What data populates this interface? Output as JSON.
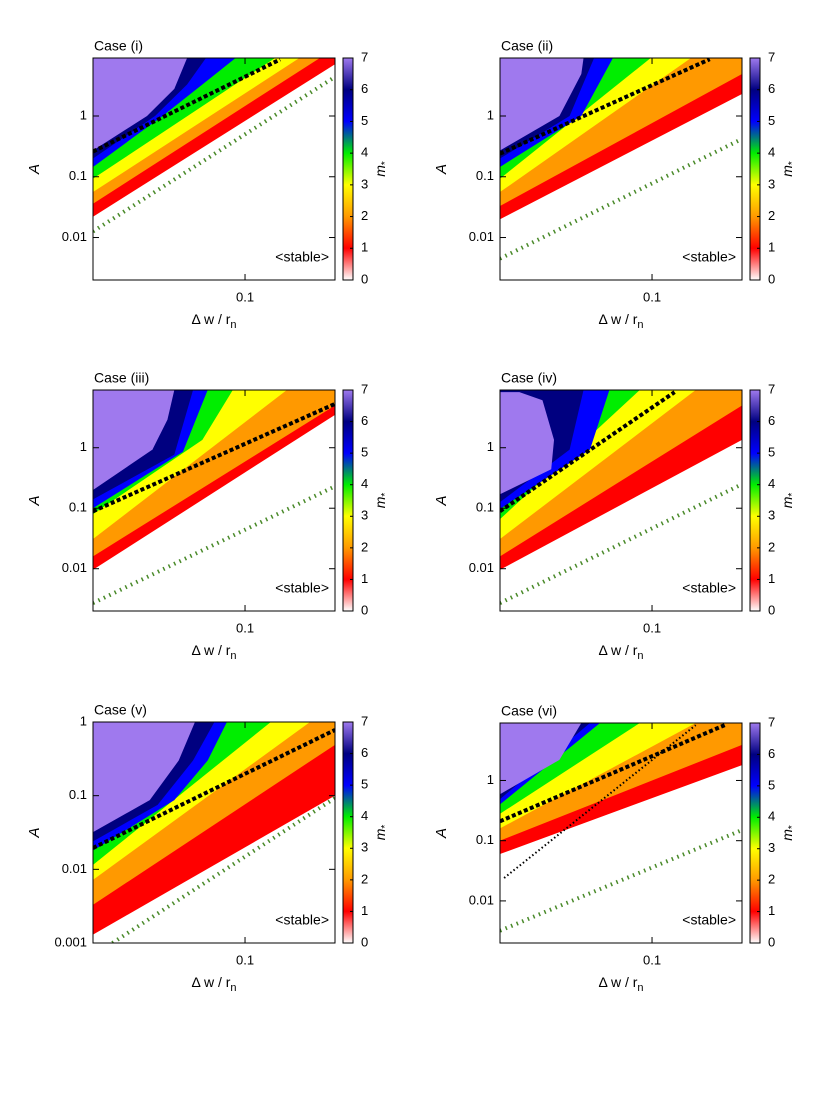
{
  "chart_data": [
    {
      "type": "heatmap",
      "title": "Case (i)",
      "xlabel": "Δ w / r",
      "xlabel_sub": "n",
      "ylabel": "A",
      "log_x": true,
      "log_y": true,
      "xlim": [
        0.031,
        0.2
      ],
      "ylim": [
        0.002,
        9
      ],
      "xticks": [
        0.1
      ],
      "yticks": [
        0.01,
        0.1,
        1
      ],
      "zlabel": "m",
      "zlabel_sub": "*",
      "zlim": [
        0,
        7
      ],
      "zticks": [
        0,
        1,
        2,
        3,
        4,
        5,
        6,
        7
      ],
      "colors": [
        "#ffffff",
        "#ff0000",
        "#ff9900",
        "#ffff00",
        "#00ee00",
        "#0000ff",
        "#000080",
        "#9f79ee"
      ],
      "annotation": "<stable>",
      "contours": [
        {
          "level": 1,
          "x": [
            0.031,
            0.2
          ],
          "y": [
            0.022,
            7.1
          ]
        },
        {
          "level": 2,
          "x": [
            0.031,
            0.178
          ],
          "y": [
            0.036,
            9
          ]
        },
        {
          "level": 3,
          "x": [
            0.031,
            0.152
          ],
          "y": [
            0.056,
            9
          ]
        },
        {
          "level": 4,
          "x": [
            0.031,
            0.126
          ],
          "y": [
            0.093,
            9
          ]
        },
        {
          "level": 5,
          "x": [
            0.031,
            0.053,
            0.072,
            0.093
          ],
          "y": [
            0.145,
            1,
            3.3,
            9
          ]
        },
        {
          "level": 6,
          "x": [
            0.031,
            0.05,
            0.064,
            0.074
          ],
          "y": [
            0.2,
            1,
            3.3,
            9
          ]
        },
        {
          "level": 7,
          "x": [
            0.031,
            0.047,
            0.058,
            0.064
          ],
          "y": [
            0.27,
            1,
            2.8,
            9
          ]
        }
      ],
      "lines": [
        {
          "marker": "triangle",
          "color": "#000000",
          "x": [
            0.031,
            0.131
          ],
          "y": [
            0.26,
            8.5
          ]
        },
        {
          "marker": "cross",
          "color": "#4a8a2a",
          "x": [
            0.031,
            0.2
          ],
          "y": [
            0.0126,
            4.4
          ]
        }
      ]
    },
    {
      "type": "heatmap",
      "title": "Case (ii)",
      "xlabel": "Δ w / r",
      "xlabel_sub": "n",
      "ylabel": "A",
      "log_x": true,
      "log_y": true,
      "xlim": [
        0.031,
        0.2
      ],
      "ylim": [
        0.002,
        9
      ],
      "xticks": [
        0.1
      ],
      "yticks": [
        0.01,
        0.1,
        1
      ],
      "zlabel": "m",
      "zlabel_sub": "*",
      "zlim": [
        0,
        7
      ],
      "zticks": [
        0,
        1,
        2,
        3,
        4,
        5,
        6,
        7
      ],
      "colors": [
        "#ffffff",
        "#ff0000",
        "#ff9900",
        "#ffff00",
        "#00ee00",
        "#0000ff",
        "#000080",
        "#9f79ee"
      ],
      "annotation": "<stable>",
      "contours": [
        {
          "level": 1,
          "x": [
            0.031,
            0.2
          ],
          "y": [
            0.02,
            2.3
          ]
        },
        {
          "level": 2,
          "x": [
            0.031,
            0.2
          ],
          "y": [
            0.033,
            4.9
          ]
        },
        {
          "level": 3,
          "x": [
            0.031,
            0.135
          ],
          "y": [
            0.056,
            9
          ]
        },
        {
          "level": 4,
          "x": [
            0.031,
            0.099
          ],
          "y": [
            0.093,
            9
          ]
        },
        {
          "level": 5,
          "x": [
            0.031,
            0.058,
            0.074
          ],
          "y": [
            0.145,
            1,
            9
          ]
        },
        {
          "level": 6,
          "x": [
            0.031,
            0.053,
            0.064
          ],
          "y": [
            0.2,
            1,
            9
          ]
        },
        {
          "level": 7,
          "x": [
            0.031,
            0.049,
            0.058,
            0.059
          ],
          "y": [
            0.27,
            1,
            4.9,
            9
          ]
        }
      ],
      "lines": [
        {
          "marker": "triangle",
          "color": "#000000",
          "x": [
            0.031,
            0.156
          ],
          "y": [
            0.24,
            8.6
          ]
        },
        {
          "marker": "cross",
          "color": "#4a8a2a",
          "x": [
            0.031,
            0.2
          ],
          "y": [
            0.0045,
            0.42
          ]
        }
      ]
    },
    {
      "type": "heatmap",
      "title": "Case (iii)",
      "xlabel": "Δ w / r",
      "xlabel_sub": "n",
      "ylabel": "A",
      "log_x": true,
      "log_y": true,
      "xlim": [
        0.031,
        0.2
      ],
      "ylim": [
        0.002,
        9
      ],
      "xticks": [
        0.1
      ],
      "yticks": [
        0.01,
        0.1,
        1
      ],
      "zlabel": "m",
      "zlabel_sub": "*",
      "zlim": [
        0,
        7
      ],
      "zticks": [
        0,
        1,
        2,
        3,
        4,
        5,
        6,
        7
      ],
      "colors": [
        "#ffffff",
        "#ff0000",
        "#ff9900",
        "#ffff00",
        "#00ee00",
        "#0000ff",
        "#000080",
        "#9f79ee"
      ],
      "annotation": "<stable>",
      "contours": [
        {
          "level": 1,
          "x": [
            0.031,
            0.2
          ],
          "y": [
            0.0096,
            3.5
          ]
        },
        {
          "level": 2,
          "x": [
            0.031,
            0.2
          ],
          "y": [
            0.016,
            5
          ]
        },
        {
          "level": 3,
          "x": [
            0.031,
            0.138
          ],
          "y": [
            0.031,
            9
          ]
        },
        {
          "level": 4,
          "x": [
            0.031,
            0.072,
            0.091
          ],
          "y": [
            0.08,
            1.35,
            9
          ]
        },
        {
          "level": 5,
          "x": [
            0.031,
            0.062,
            0.075
          ],
          "y": [
            0.1,
            0.86,
            9
          ]
        },
        {
          "level": 6,
          "x": [
            0.031,
            0.058,
            0.067
          ],
          "y": [
            0.14,
            0.77,
            9
          ]
        },
        {
          "level": 7,
          "x": [
            0.031,
            0.049,
            0.055,
            0.058
          ],
          "y": [
            0.2,
            0.93,
            2.9,
            9
          ]
        }
      ],
      "lines": [
        {
          "marker": "triangle",
          "color": "#000000",
          "x": [
            0.031,
            0.2
          ],
          "y": [
            0.089,
            5.3
          ]
        },
        {
          "marker": "cross",
          "color": "#4a8a2a",
          "x": [
            0.031,
            0.2
          ],
          "y": [
            0.0027,
            0.23
          ]
        }
      ]
    },
    {
      "type": "heatmap",
      "title": "Case (iv)",
      "xlabel": "Δ w / r",
      "xlabel_sub": "n",
      "ylabel": "A",
      "log_x": true,
      "log_y": true,
      "xlim": [
        0.031,
        0.2
      ],
      "ylim": [
        0.002,
        9
      ],
      "xticks": [
        0.1
      ],
      "yticks": [
        0.01,
        0.1,
        1
      ],
      "zlabel": "m",
      "zlabel_sub": "*",
      "zlim": [
        0,
        7
      ],
      "zticks": [
        0,
        1,
        2,
        3,
        4,
        5,
        6,
        7
      ],
      "colors": [
        "#ffffff",
        "#ff0000",
        "#ff9900",
        "#ffff00",
        "#00ee00",
        "#0000ff",
        "#000080",
        "#9f79ee"
      ],
      "annotation": "<stable>",
      "contours": [
        {
          "level": 1,
          "x": [
            0.031,
            0.2
          ],
          "y": [
            0.0096,
            1.35
          ]
        },
        {
          "level": 2,
          "x": [
            0.031,
            0.2
          ],
          "y": [
            0.016,
            5
          ]
        },
        {
          "level": 3,
          "x": [
            0.031,
            0.14
          ],
          "y": [
            0.031,
            9
          ]
        },
        {
          "level": 4,
          "x": [
            0.031,
            0.091
          ],
          "y": [
            0.066,
            9
          ]
        },
        {
          "level": 5,
          "x": [
            0.031,
            0.062,
            0.072
          ],
          "y": [
            0.097,
            0.93,
            9
          ]
        },
        {
          "level": 6,
          "x": [
            0.031,
            0.053,
            0.059
          ],
          "y": [
            0.126,
            0.93,
            9
          ]
        },
        {
          "level": 7,
          "x": [
            0.031,
            0.046,
            0.047,
            0.043,
            0.036,
            0.031
          ],
          "y": [
            0.17,
            0.44,
            1.35,
            6.1,
            8.3,
            8.3
          ]
        }
      ],
      "lines": [
        {
          "marker": "triangle",
          "color": "#000000",
          "x": [
            0.031,
            0.119
          ],
          "y": [
            0.089,
            8.3
          ]
        },
        {
          "marker": "cross",
          "color": "#4a8a2a",
          "x": [
            0.031,
            0.2
          ],
          "y": [
            0.0027,
            0.25
          ]
        }
      ]
    },
    {
      "type": "heatmap",
      "title": "Case (v)",
      "xlabel": "Δ w / r",
      "xlabel_sub": "n",
      "ylabel": "A",
      "log_x": true,
      "log_y": true,
      "xlim": [
        0.031,
        0.2
      ],
      "ylim": [
        0.001,
        1
      ],
      "xticks": [
        0.1
      ],
      "yticks": [
        0.001,
        0.01,
        0.1,
        1
      ],
      "zlabel": "m",
      "zlabel_sub": "*",
      "zlim": [
        0,
        7
      ],
      "zticks": [
        0,
        1,
        2,
        3,
        4,
        5,
        6,
        7
      ],
      "colors": [
        "#ffffff",
        "#ff0000",
        "#ff9900",
        "#ffff00",
        "#00ee00",
        "#0000ff",
        "#000080",
        "#9f79ee"
      ],
      "annotation": "<stable>",
      "contours": [
        {
          "level": 1,
          "x": [
            0.031,
            0.2
          ],
          "y": [
            0.0013,
            0.1
          ]
        },
        {
          "level": 2,
          "x": [
            0.031,
            0.2
          ],
          "y": [
            0.0033,
            0.49
          ]
        },
        {
          "level": 3,
          "x": [
            0.031,
            0.165
          ],
          "y": [
            0.0072,
            1
          ]
        },
        {
          "level": 4,
          "x": [
            0.031,
            0.122
          ],
          "y": [
            0.0115,
            1
          ]
        },
        {
          "level": 5,
          "x": [
            0.031,
            0.058,
            0.075,
            0.087
          ],
          "y": [
            0.018,
            0.087,
            0.3,
            1
          ]
        },
        {
          "level": 6,
          "x": [
            0.031,
            0.051,
            0.067,
            0.079
          ],
          "y": [
            0.024,
            0.075,
            0.3,
            1
          ]
        },
        {
          "level": 7,
          "x": [
            0.031,
            0.048,
            0.06,
            0.068
          ],
          "y": [
            0.032,
            0.087,
            0.3,
            1
          ]
        }
      ],
      "lines": [
        {
          "marker": "triangle",
          "color": "#000000",
          "x": [
            0.031,
            0.2
          ],
          "y": [
            0.0195,
            0.78
          ]
        },
        {
          "marker": "cross",
          "color": "#4a8a2a",
          "x": [
            0.036,
            0.2
          ],
          "y": [
            0.001,
            0.093
          ]
        }
      ]
    },
    {
      "type": "heatmap",
      "title": "Case (vi)",
      "xlabel": "Δ w / r",
      "xlabel_sub": "n",
      "ylabel": "A",
      "log_x": true,
      "log_y": true,
      "xlim": [
        0.031,
        0.2
      ],
      "ylim": [
        0.002,
        9
      ],
      "xticks": [
        0.1
      ],
      "yticks": [
        0.01,
        0.1,
        1
      ],
      "zlabel": "m",
      "zlabel_sub": "*",
      "zlim": [
        0,
        7
      ],
      "zticks": [
        0,
        1,
        2,
        3,
        4,
        5,
        6,
        7
      ],
      "colors": [
        "#ffffff",
        "#ff0000",
        "#ff9900",
        "#ffff00",
        "#00ee00",
        "#0000ff",
        "#000080",
        "#9f79ee"
      ],
      "annotation": "<stable>",
      "contours": [
        {
          "level": 1,
          "x": [
            0.031,
            0.2
          ],
          "y": [
            0.06,
            1.8
          ]
        },
        {
          "level": 2,
          "x": [
            0.031,
            0.2
          ],
          "y": [
            0.1,
            3.9
          ]
        },
        {
          "level": 3,
          "x": [
            0.031,
            0.14
          ],
          "y": [
            0.16,
            9
          ]
        },
        {
          "level": 4,
          "x": [
            0.031,
            0.091
          ],
          "y": [
            0.28,
            9
          ]
        },
        {
          "level": 5,
          "x": [
            0.031,
            0.067
          ],
          "y": [
            0.4,
            9
          ]
        },
        {
          "level": 6,
          "x": [
            0.031,
            0.062
          ],
          "y": [
            0.49,
            9
          ]
        },
        {
          "level": 7,
          "x": [
            0.031,
            0.049,
            0.058
          ],
          "y": [
            0.59,
            2.2,
            9
          ]
        }
      ],
      "lines": [
        {
          "marker": "triangle",
          "color": "#000000",
          "x": [
            0.031,
            0.175
          ],
          "y": [
            0.21,
            8.3
          ]
        },
        {
          "marker": "cross",
          "color": "#4a8a2a",
          "x": [
            0.031,
            0.2
          ],
          "y": [
            0.0032,
            0.15
          ]
        },
        {
          "marker": "dot",
          "color": "#000000",
          "x": [
            0.032,
            0.14
          ],
          "y": [
            0.024,
            8.3
          ]
        }
      ]
    }
  ]
}
